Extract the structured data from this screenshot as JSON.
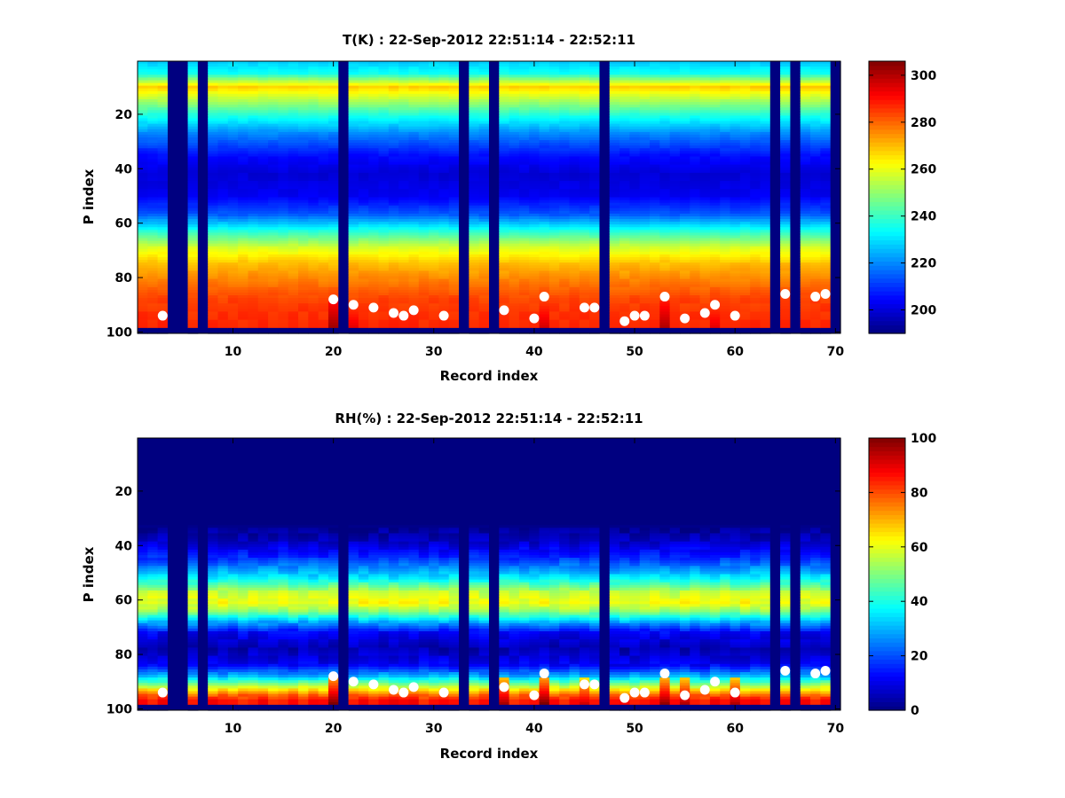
{
  "chart_data": [
    {
      "type": "heatmap",
      "title": "T(K) : 22-Sep-2012 22:51:14 - 22:52:11",
      "xlabel": "Record index",
      "ylabel": "P index",
      "xlim": [
        0.5,
        70.5
      ],
      "ylim": [
        0.5,
        100.5
      ],
      "y_reversed": true,
      "xticks": [
        10,
        20,
        30,
        40,
        50,
        60,
        70
      ],
      "yticks": [
        20,
        40,
        60,
        80,
        100
      ],
      "colormap": "jet",
      "clim": [
        190,
        306
      ],
      "colorbar_ticks": [
        200,
        220,
        240,
        260,
        280,
        300
      ],
      "missing_records": [
        4,
        5,
        7,
        21,
        33,
        36,
        47,
        64,
        66,
        70
      ],
      "profile": {
        "p_index": [
          1,
          5,
          8,
          10,
          14,
          20,
          27,
          35,
          42,
          50,
          57,
          63,
          69,
          75,
          82,
          88,
          93,
          97
        ],
        "values": [
          228,
          235,
          255,
          268,
          256,
          238,
          220,
          206,
          200,
          203,
          215,
          238,
          258,
          270,
          278,
          284,
          286,
          287
        ]
      },
      "near_surface_peaks": [
        {
          "record": 20,
          "value": 302
        },
        {
          "record": 53,
          "value": 300
        },
        {
          "record": 41,
          "value": 296
        },
        {
          "record": 22,
          "value": 294
        },
        {
          "record": 58,
          "value": 294
        }
      ],
      "markers": {
        "record": [
          3,
          20,
          22,
          24,
          26,
          27,
          28,
          31,
          37,
          40,
          41,
          45,
          46,
          49,
          50,
          51,
          53,
          55,
          57,
          58,
          60,
          65,
          68,
          69
        ],
        "p_index": [
          94,
          88,
          90,
          91,
          93,
          94,
          92,
          94,
          92,
          95,
          87,
          91,
          91,
          96,
          94,
          94,
          87,
          95,
          93,
          90,
          94,
          86,
          87,
          86
        ]
      }
    },
    {
      "type": "heatmap",
      "title": "RH(%) : 22-Sep-2012 22:51:14 - 22:52:11",
      "xlabel": "Record index",
      "ylabel": "P index",
      "xlim": [
        0.5,
        70.5
      ],
      "ylim": [
        0.5,
        100.5
      ],
      "y_reversed": true,
      "xticks": [
        10,
        20,
        30,
        40,
        50,
        60,
        70
      ],
      "yticks": [
        20,
        40,
        60,
        80,
        100
      ],
      "colormap": "jet",
      "clim": [
        0,
        100
      ],
      "colorbar_ticks": [
        0,
        20,
        40,
        60,
        80,
        100
      ],
      "missing_records": [
        4,
        5,
        7,
        21,
        33,
        36,
        47,
        64,
        66,
        70
      ],
      "profile": {
        "p_index": [
          1,
          32,
          38,
          45,
          52,
          57,
          61,
          64,
          68,
          72,
          78,
          84,
          88,
          92,
          95,
          97
        ],
        "values": [
          0,
          0,
          6,
          18,
          36,
          56,
          62,
          52,
          30,
          12,
          5,
          12,
          30,
          58,
          78,
          86
        ]
      },
      "near_surface_peaks": [
        {
          "record": 20,
          "value": 100
        },
        {
          "record": 41,
          "value": 100
        },
        {
          "record": 53,
          "value": 98
        },
        {
          "record": 37,
          "value": 96
        },
        {
          "record": 60,
          "value": 95
        },
        {
          "record": 55,
          "value": 95
        },
        {
          "record": 45,
          "value": 92
        }
      ],
      "markers": {
        "record": [
          3,
          20,
          22,
          24,
          26,
          27,
          28,
          31,
          37,
          40,
          41,
          45,
          46,
          49,
          50,
          51,
          53,
          55,
          57,
          58,
          60,
          65,
          68,
          69
        ],
        "p_index": [
          94,
          88,
          90,
          91,
          93,
          94,
          92,
          94,
          92,
          95,
          87,
          91,
          91,
          96,
          94,
          94,
          87,
          95,
          93,
          90,
          94,
          86,
          87,
          86
        ]
      }
    }
  ]
}
